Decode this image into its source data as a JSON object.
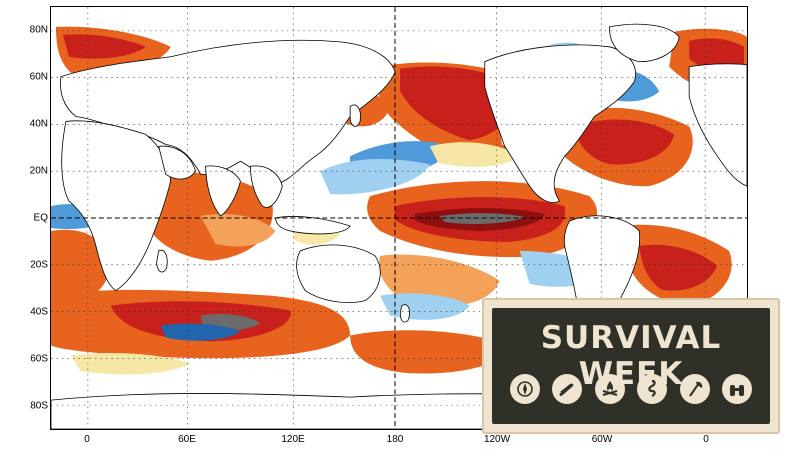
{
  "axes": {
    "lat_labels": [
      "80N",
      "60N",
      "40N",
      "20N",
      "EQ",
      "20S",
      "40S",
      "60S",
      "80S"
    ],
    "lon_labels": [
      "0",
      "60E",
      "120E",
      "180",
      "120W",
      "60W",
      "0"
    ]
  },
  "map": {
    "projection": "equirectangular",
    "field": "sea surface temperature anomaly",
    "color_scale": [
      "#2166ac",
      "#4f9bd9",
      "#9fd0f0",
      "#f6e7a6",
      "#f4a259",
      "#e8641e",
      "#c8201a",
      "#8e0f10",
      "#6b6b6b"
    ]
  },
  "badge": {
    "title": "SURVIVAL WEEK",
    "icons": [
      "compass-icon",
      "knife-icon",
      "campfire-icon",
      "rope-icon",
      "axe-icon",
      "binoculars-icon"
    ]
  }
}
